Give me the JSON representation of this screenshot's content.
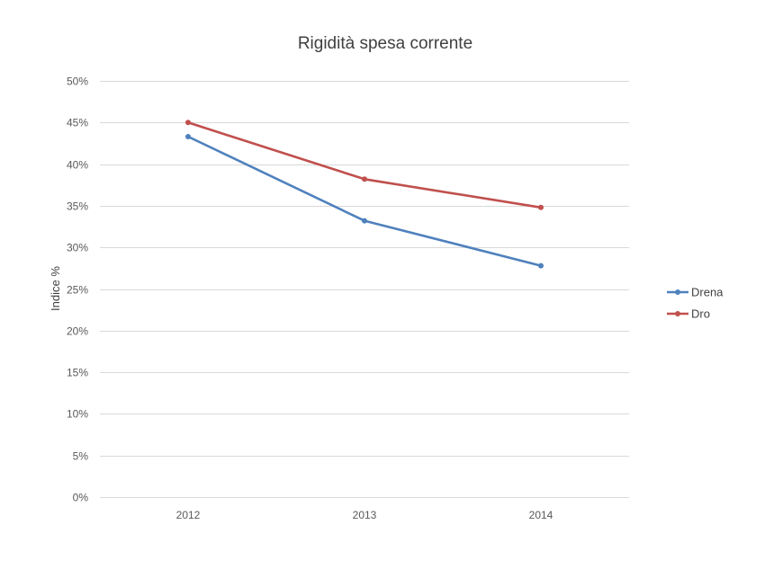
{
  "chart_data": {
    "type": "line",
    "title": "Rigidità spesa corrente",
    "xlabel": "",
    "ylabel": "Indice %",
    "categories": [
      "2012",
      "2013",
      "2014"
    ],
    "series": [
      {
        "name": "Drena",
        "color": "#4f81bd",
        "values": [
          43.3,
          33.2,
          27.8
        ]
      },
      {
        "name": "Dro",
        "color": "#c0504d",
        "values": [
          45.0,
          38.2,
          34.8
        ]
      }
    ],
    "ylim": [
      0,
      50
    ],
    "y_ticks": [
      0,
      5,
      10,
      15,
      20,
      25,
      30,
      35,
      40,
      45,
      50
    ],
    "y_tick_labels": [
      "0%",
      "5%",
      "10%",
      "15%",
      "20%",
      "25%",
      "30%",
      "35%",
      "40%",
      "45%",
      "50%"
    ],
    "grid": true,
    "legend_position": "right"
  }
}
